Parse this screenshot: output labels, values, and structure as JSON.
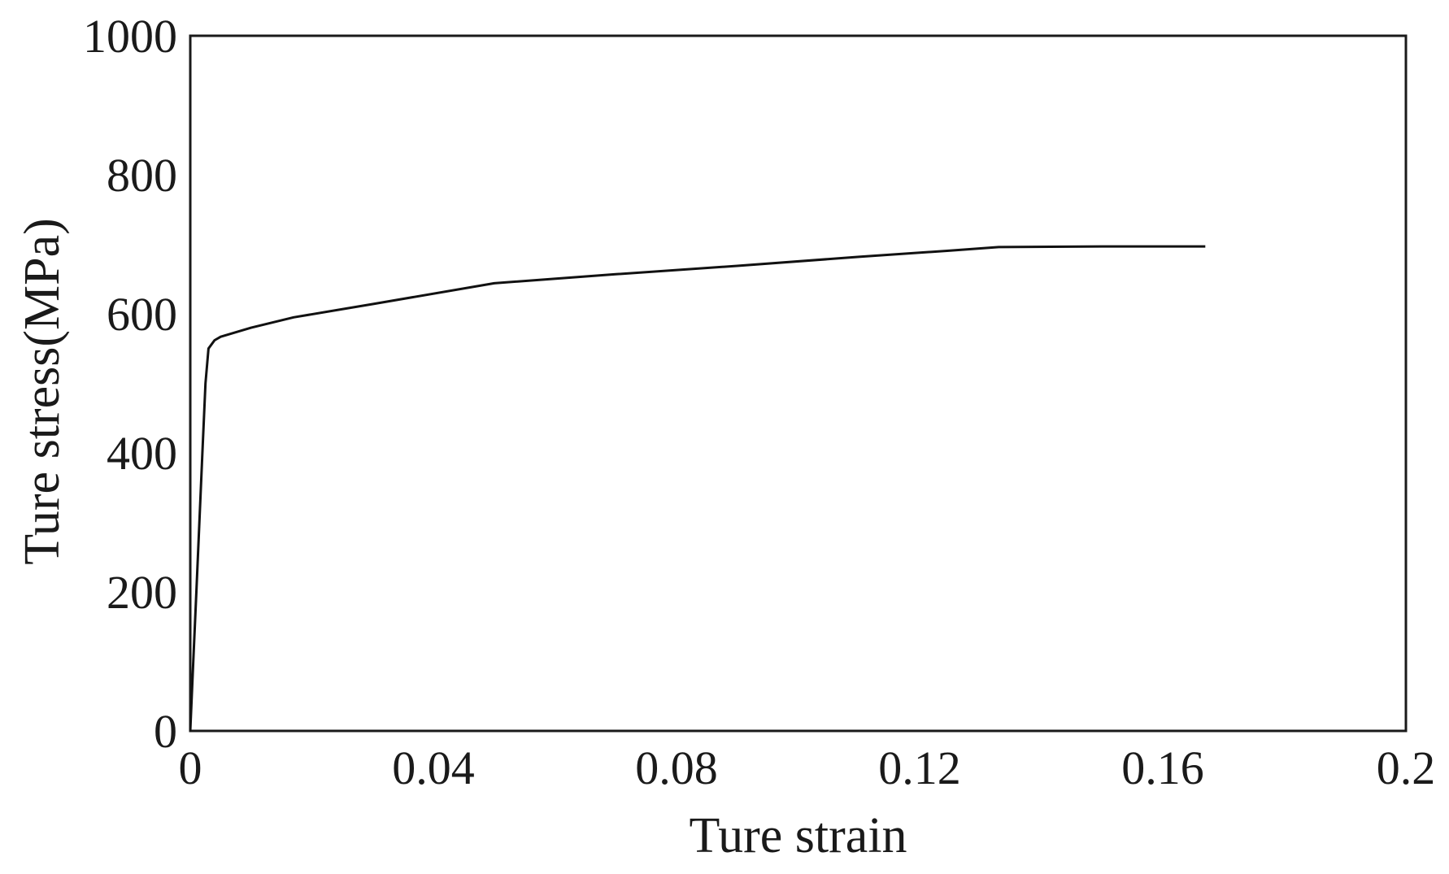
{
  "chart_data": {
    "type": "line",
    "title": "",
    "xlabel": "Ture strain",
    "ylabel": "Ture stress(MPa)",
    "xlim": [
      0,
      0.2
    ],
    "ylim": [
      0,
      1000
    ],
    "grid": false,
    "legend": "none",
    "x_ticks": [
      "0",
      "0.04",
      "0.08",
      "0.12",
      "0.16",
      "0.2"
    ],
    "y_ticks": [
      "0",
      "200",
      "400",
      "600",
      "800",
      "1000"
    ],
    "series": [
      {
        "color": "#111111",
        "x": [
          0,
          0.0005,
          0.001,
          0.0015,
          0.002,
          0.0025,
          0.003,
          0.004,
          0.005,
          0.01,
          0.017,
          0.03,
          0.05,
          0.07,
          0.09,
          0.11,
          0.125,
          0.133,
          0.15,
          0.167
        ],
        "y": [
          0,
          100,
          200,
          300,
          400,
          500,
          550,
          562,
          567,
          580,
          595,
          614,
          644,
          657,
          669,
          682,
          691,
          696,
          697,
          697
        ]
      }
    ]
  }
}
